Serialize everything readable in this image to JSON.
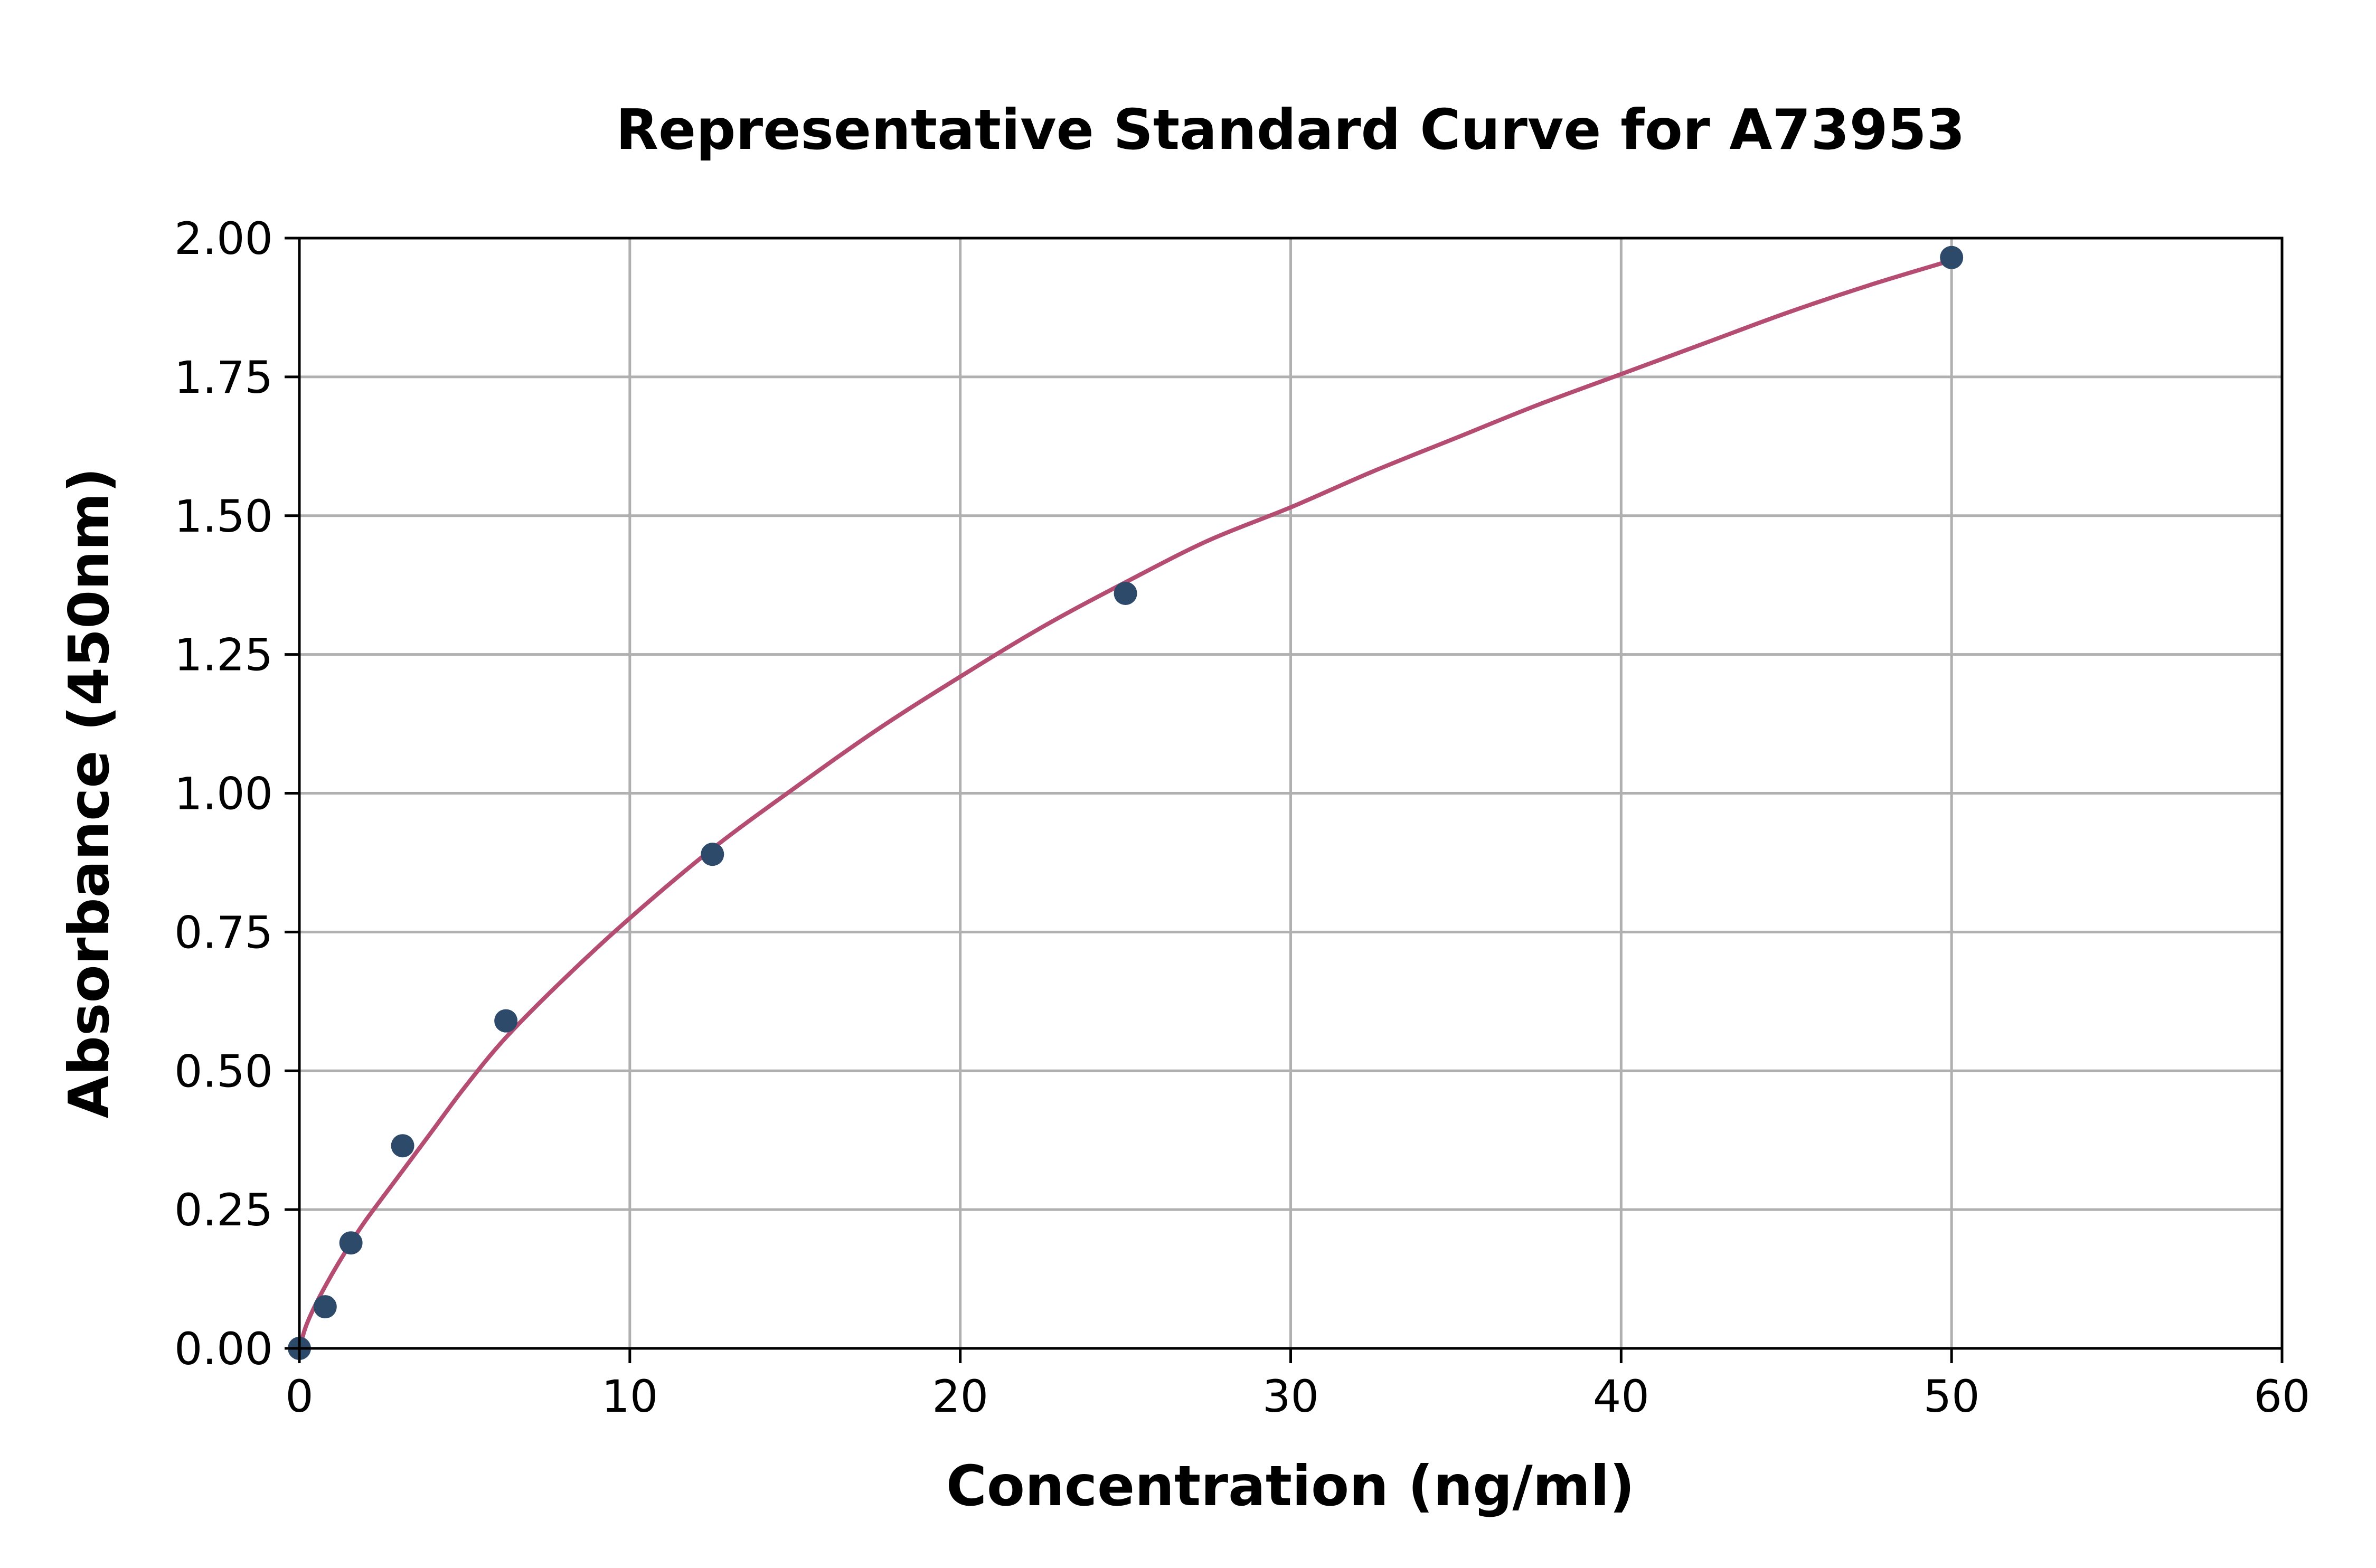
{
  "chart_data": {
    "type": "scatter",
    "title": "Representative Standard Curve for A73953",
    "xlabel": "Concentration (ng/ml)",
    "ylabel": "Absorbance (450nm)",
    "xlim": [
      0,
      60
    ],
    "ylim": [
      0,
      2.0
    ],
    "x_ticks": [
      "0",
      "10",
      "20",
      "30",
      "40",
      "50",
      "60"
    ],
    "y_ticks": [
      "0.00",
      "0.25",
      "0.50",
      "0.75",
      "1.00",
      "1.25",
      "1.50",
      "1.75",
      "2.00"
    ],
    "grid": true,
    "series": [
      {
        "kind": "points",
        "x": [
          0,
          0.78,
          1.56,
          3.125,
          6.25,
          12.5,
          25,
          50
        ],
        "y": [
          0.0,
          0.075,
          0.19,
          0.365,
          0.59,
          0.89,
          1.36,
          1.965
        ]
      },
      {
        "kind": "fit-curve",
        "x": [
          0,
          0.2,
          0.5,
          1,
          1.56,
          2,
          3,
          4,
          5,
          6.25,
          8,
          10,
          12.5,
          15,
          17.5,
          20,
          22.5,
          25,
          27.5,
          30,
          32.5,
          35,
          37.5,
          40,
          42.5,
          45,
          47.5,
          50
        ],
        "y": [
          0.0,
          0.04,
          0.08,
          0.135,
          0.19,
          0.23,
          0.31,
          0.39,
          0.47,
          0.56,
          0.665,
          0.775,
          0.9,
          1.01,
          1.115,
          1.21,
          1.3,
          1.38,
          1.455,
          1.515,
          1.58,
          1.64,
          1.7,
          1.755,
          1.81,
          1.865,
          1.915,
          1.96
        ]
      }
    ],
    "colors": {
      "points": "#2d4a6b",
      "curve": "#b54d72"
    }
  }
}
